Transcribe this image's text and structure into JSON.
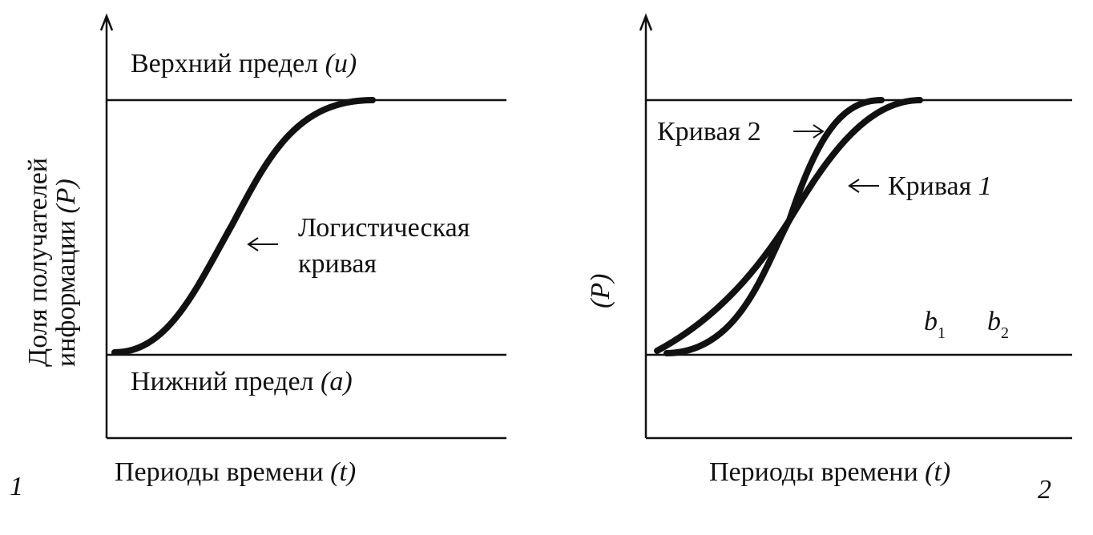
{
  "panel1": {
    "upper_limit": {
      "text": "Верхний предел",
      "symbol": "(u)"
    },
    "lower_limit": {
      "text": "Нижний предел",
      "symbol": "(a)"
    },
    "curve_label": {
      "line1": "Логистическая",
      "line2": "кривая"
    },
    "x_label": {
      "text": "Периоды времени",
      "symbol": "(t)"
    },
    "y_label": {
      "line1": "Доля получателей",
      "line2": "информации",
      "symbol": "(P)"
    },
    "number": "1"
  },
  "panel2": {
    "y_label": "(P)",
    "curve2_label": {
      "text": "Кривая",
      "number": "2"
    },
    "curve1_label": {
      "text": "Кривая",
      "number": "1"
    },
    "b1": {
      "base": "b",
      "sub": "1"
    },
    "b2": {
      "base": "b",
      "sub": "2"
    },
    "x_label": {
      "text": "Периоды времени",
      "symbol": "(t)"
    },
    "number": "2"
  }
}
